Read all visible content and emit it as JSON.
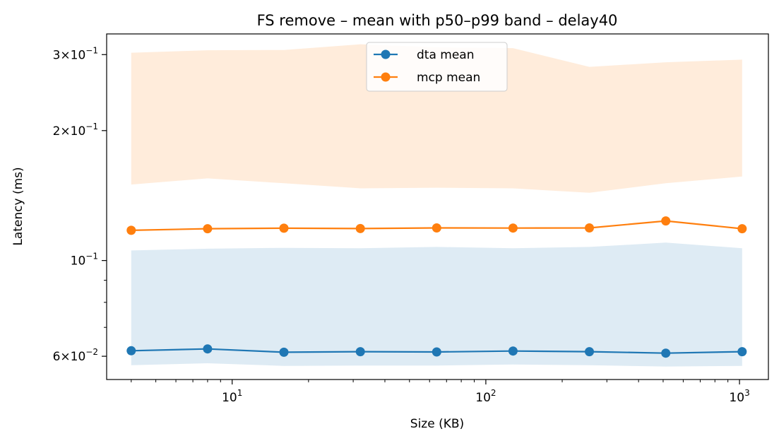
{
  "chart_data": {
    "type": "line",
    "title": "FS remove – mean with p50–p99 band – delay40",
    "xlabel": "Size (KB)",
    "ylabel": "Latency (ms)",
    "xscale": "log",
    "yscale": "log",
    "xlim": [
      3.2,
      1300
    ],
    "ylim": [
      0.053,
      0.335
    ],
    "x": [
      4,
      8,
      16,
      32,
      64,
      128,
      256,
      512,
      1024
    ],
    "x_ticks": [
      {
        "value": 10,
        "base": "10",
        "exp": "1"
      },
      {
        "value": 100,
        "base": "10",
        "exp": "2"
      },
      {
        "value": 1000,
        "base": "10",
        "exp": "3"
      }
    ],
    "y_ticks": [
      {
        "value": 0.3,
        "mant": "3",
        "exp": "−1"
      },
      {
        "value": 0.2,
        "mant": "2",
        "exp": "−1"
      },
      {
        "value": 0.1,
        "mant": "",
        "exp": "−1"
      },
      {
        "value": 0.06,
        "mant": "6",
        "exp": "−2"
      }
    ],
    "series": [
      {
        "name": "dta mean",
        "color": "#1f77b4",
        "mean": [
          0.0618,
          0.0624,
          0.0613,
          0.0615,
          0.0614,
          0.0617,
          0.0615,
          0.061,
          0.0615
        ],
        "p50": [
          0.0572,
          0.0578,
          0.057,
          0.0571,
          0.0571,
          0.0574,
          0.0572,
          0.0568,
          0.057
        ],
        "p99": [
          0.1055,
          0.1065,
          0.107,
          0.1068,
          0.1075,
          0.1068,
          0.1075,
          0.11,
          0.1068
        ]
      },
      {
        "name": "mcp mean",
        "color": "#ff7f0e",
        "mean": [
          0.1175,
          0.1185,
          0.1188,
          0.1186,
          0.119,
          0.1189,
          0.119,
          0.1235,
          0.1185
        ],
        "p50": [
          0.15,
          0.155,
          0.151,
          0.147,
          0.1475,
          0.147,
          0.1435,
          0.151,
          0.1565
        ],
        "p99": [
          0.303,
          0.307,
          0.3075,
          0.317,
          0.312,
          0.3105,
          0.281,
          0.288,
          0.292
        ]
      }
    ],
    "legend": "upper center",
    "grid": false
  }
}
